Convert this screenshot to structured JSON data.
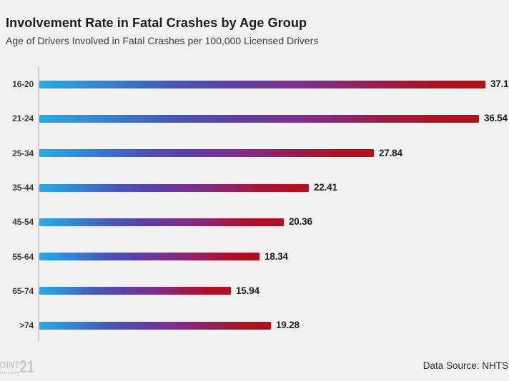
{
  "header": {
    "title": "Involvement Rate in Fatal Crashes by Age Group",
    "subtitle": "Age of Drivers Involved in Fatal Crashes per 100,000 Licensed Drivers"
  },
  "chart_data": {
    "type": "bar",
    "orientation": "horizontal",
    "title": "Involvement Rate in Fatal Crashes by Age Group",
    "subtitle": "Age of Drivers Involved in Fatal Crashes per 100,000 Licensed Drivers",
    "categories": [
      "16-20",
      "21-24",
      "25-34",
      "35-44",
      "45-54",
      "55-64",
      "65-74",
      ">74"
    ],
    "values": [
      37.1,
      36.54,
      27.84,
      22.41,
      20.36,
      18.34,
      15.94,
      19.28
    ],
    "value_labels": [
      "37.1",
      "36.54",
      "27.84",
      "22.41",
      "20.36",
      "18.34",
      "15.94",
      "19.28"
    ],
    "xlabel": "",
    "ylabel": "",
    "xlim": [
      0,
      39
    ],
    "grid": false,
    "legend": false,
    "bar_gradient_stops": [
      "#29abe2 0%",
      "#3481d3 15%",
      "#4657b6 30%",
      "#5f3da4 45%",
      "#7b3092 57%",
      "#8d2470 68%",
      "#9c1b47 78%",
      "#ab1226 88%",
      "#b11119 100%"
    ]
  },
  "footer": {
    "logo_word": "POINT",
    "logo_number": "21",
    "data_source": "Data Source: NHTS"
  },
  "colors": {
    "background": "#f0f0f0",
    "title": "#1d1d1d",
    "subtitle": "#3d3d3d",
    "category_label": "#3d3d3d",
    "value_label": "#1c1c1c",
    "axis_line": "#cfcfcf",
    "logo": "#c7c7c7"
  }
}
